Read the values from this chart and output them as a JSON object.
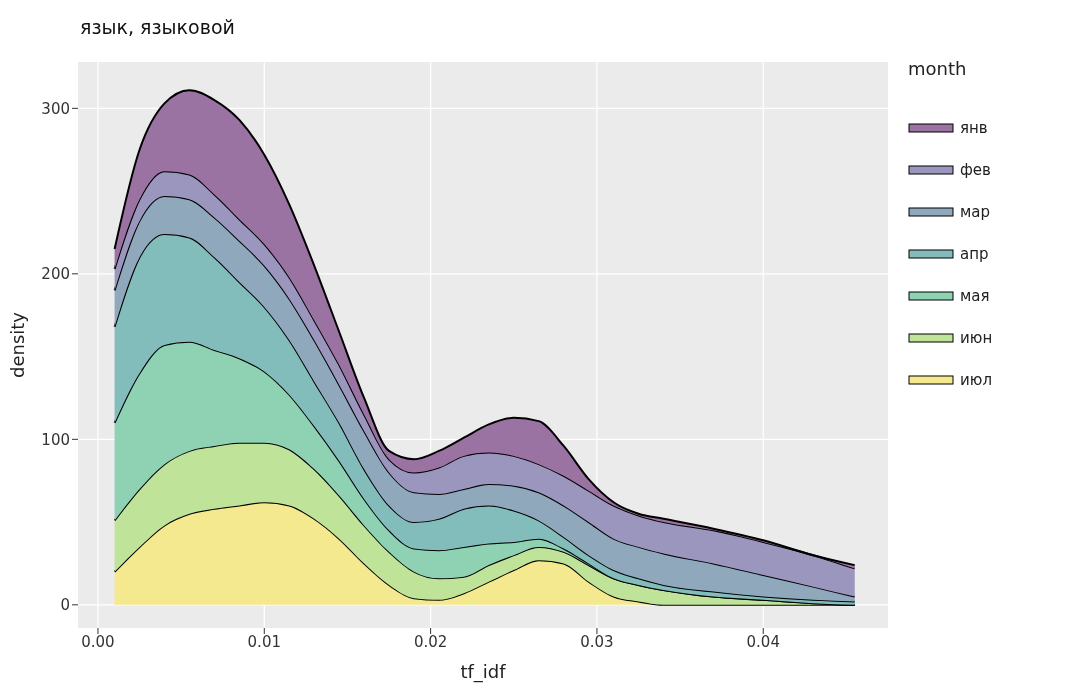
{
  "chart_data": {
    "type": "area",
    "stacked": true,
    "title": "язык, языковой",
    "xlabel": "tf_idf",
    "ylabel": "density",
    "legend_title": "month",
    "legend": "right",
    "grid": true,
    "x": [
      0.001,
      0.0025,
      0.004,
      0.0055,
      0.007,
      0.0085,
      0.01,
      0.0115,
      0.013,
      0.0145,
      0.016,
      0.0175,
      0.019,
      0.0205,
      0.022,
      0.0235,
      0.025,
      0.0265,
      0.028,
      0.0295,
      0.031,
      0.0325,
      0.034,
      0.037,
      0.04,
      0.043,
      0.0455
    ],
    "xlim": [
      -0.0012,
      0.0475
    ],
    "xticks": [
      {
        "value": 0,
        "label": "0.00"
      },
      {
        "value": 0.01,
        "label": "0.01"
      },
      {
        "value": 0.02,
        "label": "0.02"
      },
      {
        "value": 0.03,
        "label": "0.03"
      },
      {
        "value": 0.04,
        "label": "0.04"
      }
    ],
    "ylim": [
      -14,
      328
    ],
    "yticks": [
      0,
      100,
      200,
      300
    ],
    "series": [
      {
        "name": "июл",
        "color": "#f5e98f",
        "values": [
          20,
          35,
          48,
          55,
          58,
          60,
          62,
          60,
          52,
          40,
          25,
          12,
          4,
          3,
          7,
          14,
          21,
          27,
          25,
          14,
          5,
          2,
          0,
          0,
          0,
          0,
          0
        ]
      },
      {
        "name": "июн",
        "color": "#c0e39a",
        "values": [
          31,
          35,
          37,
          38,
          38,
          38,
          36,
          34,
          30,
          26,
          23,
          20,
          16,
          13,
          10,
          10,
          9,
          8,
          7,
          10,
          11,
          10,
          9,
          5,
          3,
          1,
          0
        ]
      },
      {
        "name": "мая",
        "color": "#8fd1b3",
        "values": [
          59,
          70,
          72,
          66,
          58,
          51,
          43,
          33,
          26,
          21,
          16,
          13,
          14,
          17,
          18,
          13,
          8,
          5,
          2,
          1,
          0,
          0,
          0,
          0,
          0,
          0,
          0
        ]
      },
      {
        "name": "апр",
        "color": "#82bcbb",
        "values": [
          58,
          70,
          67,
          63,
          56,
          46,
          39,
          33,
          27,
          23,
          18,
          15,
          16,
          19,
          23,
          23,
          19,
          11,
          7,
          5,
          5,
          4,
          3,
          3,
          2,
          2,
          2
        ]
      },
      {
        "name": "мар",
        "color": "#8fa8bb",
        "values": [
          22,
          22,
          23,
          23,
          24,
          25,
          25,
          25,
          25,
          23,
          23,
          20,
          18,
          15,
          12,
          13,
          15,
          17,
          19,
          20,
          19,
          19,
          19,
          17,
          13,
          8,
          3
        ]
      },
      {
        "name": "фев",
        "color": "#9a96bd",
        "values": [
          13,
          13,
          15,
          15,
          14,
          13,
          13,
          13,
          12,
          12,
          10,
          8,
          12,
          16,
          20,
          19,
          18,
          17,
          18,
          19,
          20,
          19,
          19,
          20,
          20,
          19,
          17
        ]
      },
      {
        "name": "янв",
        "color": "#9b73a3",
        "values": [
          12,
          30,
          41,
          51,
          57,
          60,
          54,
          44,
          33,
          20,
          10,
          5,
          8,
          10,
          11,
          17,
          23,
          26,
          18,
          7,
          2,
          1,
          2,
          1,
          1,
          0,
          2
        ]
      }
    ]
  }
}
